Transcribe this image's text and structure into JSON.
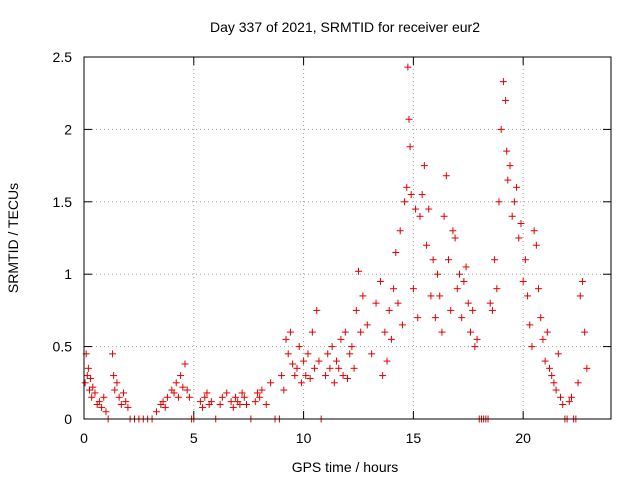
{
  "chart_data": {
    "type": "scatter",
    "title": "Day 337 of 2021, SRMTID for receiver eur2",
    "xlabel": "GPS time / hours",
    "ylabel": "SRMTID / TECUs",
    "xlim": [
      0,
      24
    ],
    "ylim": [
      0,
      2.5
    ],
    "x_ticks": [
      0,
      5,
      10,
      15,
      20
    ],
    "y_ticks": [
      0,
      0.5,
      1,
      1.5,
      2,
      2.5
    ],
    "x_tick_labels": [
      "0",
      "5",
      "10",
      "15",
      "20"
    ],
    "y_tick_labels": [
      "0",
      "0.5",
      "1",
      "1.5",
      "2",
      "2.5"
    ],
    "grid": true,
    "marker": "plus",
    "color": "#e00000",
    "series": [
      {
        "name": "eur2",
        "x": [
          0.05,
          0.1,
          0.15,
          0.2,
          0.25,
          0.3,
          0.35,
          0.4,
          0.5,
          0.6,
          0.7,
          0.8,
          0.9,
          1.0,
          1.1,
          1.3,
          1.35,
          1.4,
          1.5,
          1.6,
          1.7,
          1.8,
          1.9,
          2.0,
          2.1,
          2.3,
          2.5,
          2.7,
          2.9,
          3.1,
          3.3,
          3.5,
          3.6,
          3.7,
          3.8,
          4.0,
          4.1,
          4.2,
          4.3,
          4.4,
          4.5,
          4.6,
          4.7,
          4.8,
          4.9,
          5.0,
          5.3,
          5.4,
          5.5,
          5.6,
          5.7,
          5.8,
          6.0,
          6.2,
          6.3,
          6.5,
          6.7,
          6.8,
          6.9,
          7.0,
          7.1,
          7.2,
          7.3,
          7.4,
          7.6,
          7.8,
          7.9,
          8.0,
          8.1,
          8.3,
          8.5,
          8.7,
          8.9,
          9.0,
          9.1,
          9.2,
          9.3,
          9.4,
          9.5,
          9.6,
          9.7,
          9.8,
          9.9,
          10.0,
          10.1,
          10.2,
          10.3,
          10.4,
          10.5,
          10.6,
          10.7,
          10.8,
          11.0,
          11.1,
          11.2,
          11.3,
          11.4,
          11.5,
          11.6,
          11.7,
          11.8,
          11.9,
          12.0,
          12.1,
          12.2,
          12.3,
          12.4,
          12.5,
          12.6,
          12.7,
          12.9,
          13.1,
          13.3,
          13.5,
          13.6,
          13.7,
          13.8,
          13.9,
          14.0,
          14.1,
          14.2,
          14.3,
          14.4,
          14.5,
          14.6,
          14.7,
          14.75,
          14.8,
          14.85,
          14.9,
          15.0,
          15.1,
          15.2,
          15.3,
          15.4,
          15.5,
          15.6,
          15.7,
          15.8,
          15.9,
          16.0,
          16.1,
          16.2,
          16.3,
          16.4,
          16.5,
          16.6,
          16.7,
          16.8,
          16.9,
          17.0,
          17.1,
          17.2,
          17.3,
          17.4,
          17.5,
          17.6,
          17.7,
          17.8,
          17.9,
          18.0,
          18.1,
          18.2,
          18.3,
          18.4,
          18.5,
          18.6,
          18.7,
          18.8,
          18.9,
          19.0,
          19.1,
          19.2,
          19.25,
          19.3,
          19.4,
          19.5,
          19.6,
          19.7,
          19.8,
          19.9,
          20.0,
          20.1,
          20.2,
          20.3,
          20.4,
          20.5,
          20.6,
          20.7,
          20.8,
          20.9,
          21.0,
          21.1,
          21.2,
          21.3,
          21.4,
          21.5,
          21.6,
          21.7,
          21.8,
          21.9,
          22.0,
          22.1,
          22.2,
          22.3,
          22.4,
          22.5,
          22.6,
          22.7,
          22.8,
          22.9
        ],
        "y": [
          0.25,
          0.45,
          0.3,
          0.35,
          0.2,
          0.28,
          0.15,
          0.22,
          0.18,
          0.1,
          0.12,
          0.08,
          0.15,
          0.05,
          0.0,
          0.45,
          0.3,
          0.2,
          0.25,
          0.15,
          0.1,
          0.18,
          0.12,
          0.08,
          0.0,
          0.0,
          0.0,
          0.0,
          0.0,
          0.0,
          0.05,
          0.1,
          0.12,
          0.08,
          0.15,
          0.2,
          0.18,
          0.25,
          0.15,
          0.3,
          0.22,
          0.38,
          0.2,
          0.15,
          0.0,
          0.0,
          0.12,
          0.08,
          0.15,
          0.18,
          0.1,
          0.12,
          0.0,
          0.1,
          0.15,
          0.18,
          0.12,
          0.08,
          0.15,
          0.12,
          0.1,
          0.18,
          0.15,
          0.1,
          0.0,
          0.12,
          0.18,
          0.15,
          0.2,
          0.1,
          0.25,
          0.0,
          0.0,
          0.3,
          0.2,
          0.55,
          0.45,
          0.6,
          0.38,
          0.3,
          0.35,
          0.5,
          0.25,
          0.4,
          0.3,
          0.45,
          0.28,
          0.6,
          0.35,
          0.75,
          0.4,
          0.0,
          0.3,
          0.45,
          0.35,
          0.5,
          0.25,
          0.4,
          0.35,
          0.55,
          0.3,
          0.6,
          0.28,
          0.45,
          0.5,
          0.35,
          0.75,
          1.02,
          0.6,
          0.85,
          0.65,
          0.45,
          0.8,
          0.95,
          0.3,
          0.6,
          0.4,
          0.75,
          0.55,
          0.9,
          1.15,
          0.8,
          1.3,
          0.65,
          1.5,
          1.6,
          2.43,
          2.07,
          1.88,
          1.55,
          0.9,
          1.45,
          0.7,
          1.4,
          1.55,
          1.75,
          1.2,
          1.45,
          0.85,
          1.1,
          0.7,
          1.0,
          0.85,
          0.6,
          1.4,
          1.68,
          1.1,
          0.75,
          1.3,
          1.25,
          0.9,
          1.0,
          0.7,
          0.95,
          1.05,
          0.8,
          0.6,
          0.75,
          0.5,
          0.55,
          0.0,
          0.0,
          0.0,
          0.0,
          0.0,
          0.8,
          0.75,
          1.1,
          0.9,
          1.5,
          2.0,
          2.33,
          2.2,
          1.85,
          1.65,
          1.75,
          1.4,
          1.5,
          1.6,
          1.25,
          1.35,
          0.95,
          1.1,
          0.85,
          0.65,
          0.5,
          1.3,
          1.2,
          0.9,
          0.7,
          0.55,
          0.4,
          0.6,
          0.35,
          0.3,
          0.25,
          0.2,
          0.45,
          0.15,
          0.1,
          0.0,
          0.0,
          0.12,
          0.15,
          0.0,
          0.0,
          0.25,
          0.85,
          0.95,
          0.6,
          0.35
        ]
      }
    ]
  }
}
